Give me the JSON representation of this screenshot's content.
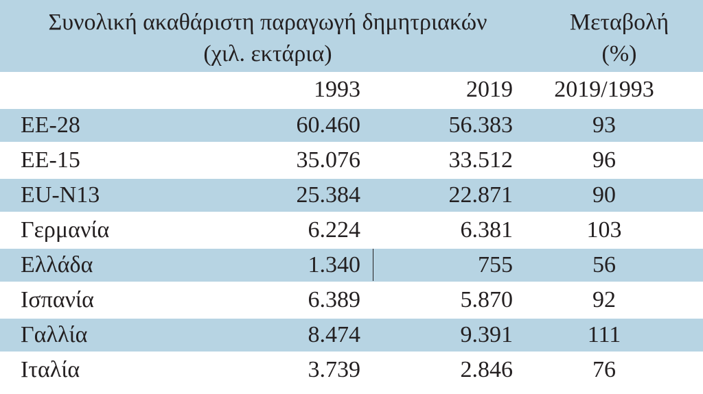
{
  "header": {
    "title_line1": "Συνολική ακαθάριστη παραγωγή δημητριακών",
    "title_line2": "(χιλ. εκτάρια)",
    "change_line1": "Μεταβολή",
    "change_line2": "(%)"
  },
  "subheader": {
    "col_1993": "1993",
    "col_2019": "2019",
    "col_change": "2019/1993"
  },
  "rows": [
    {
      "name": "ΕΕ-28",
      "v1993": "60.460",
      "v2019": "56.383",
      "change": "93"
    },
    {
      "name": "ΕΕ-15",
      "v1993": "35.076",
      "v2019": "33.512",
      "change": "96"
    },
    {
      "name": "EU-N13",
      "v1993": "25.384",
      "v2019": "22.871",
      "change": "90"
    },
    {
      "name": "Γερμανία",
      "v1993": "6.224",
      "v2019": "6.381",
      "change": "103"
    },
    {
      "name": "Ελλάδα",
      "v1993": "1.340",
      "v2019": "755",
      "change": "56"
    },
    {
      "name": "Ισπανία",
      "v1993": "6.389",
      "v2019": "5.870",
      "change": "92"
    },
    {
      "name": "Γαλλία",
      "v1993": "8.474",
      "v2019": "9.391",
      "change": "111"
    },
    {
      "name": "Ιταλία",
      "v1993": "3.739",
      "v2019": "2.846",
      "change": "76"
    }
  ]
}
